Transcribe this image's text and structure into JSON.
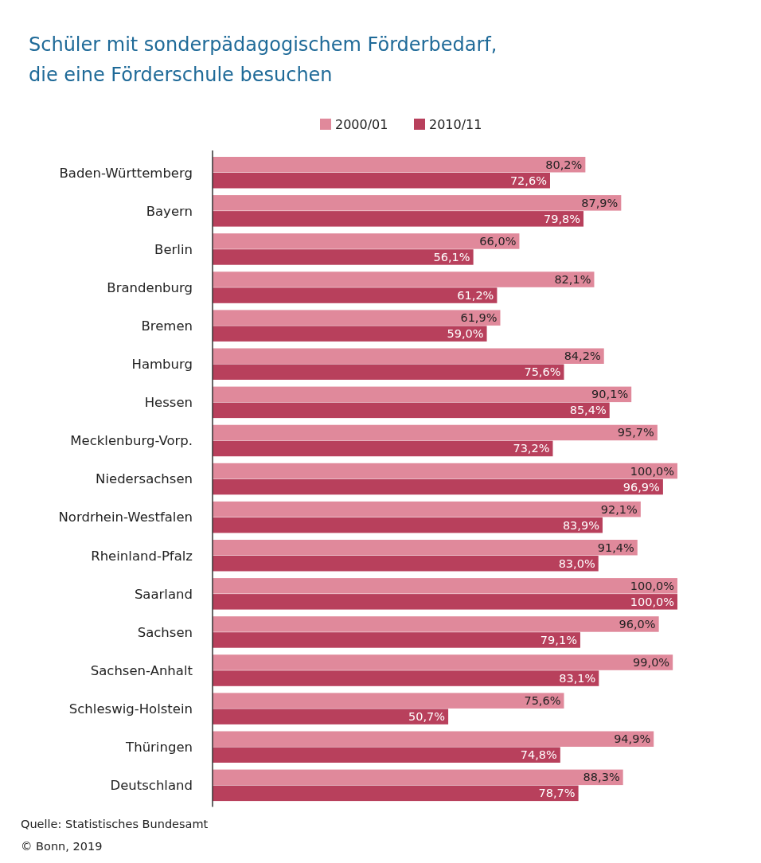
{
  "chart_data": {
    "type": "bar",
    "orientation": "horizontal",
    "title": "Schüler mit sonderpädagogischem Förderbedarf,\ndie eine Förderschule besuchen",
    "categories": [
      "Baden-Württemberg",
      "Bayern",
      "Berlin",
      "Brandenburg",
      "Bremen",
      "Hamburg",
      "Hessen",
      "Mecklenburg-Vorp.",
      "Niedersachsen",
      "Nordrhein-Westfalen",
      "Rheinland-Pfalz",
      "Saarland",
      "Sachsen",
      "Sachsen-Anhalt",
      "Schleswig-Holstein",
      "Thüringen",
      "Deutschland"
    ],
    "series": [
      {
        "name": "2000/01",
        "color": "#e0899b",
        "values": [
          80.2,
          87.9,
          66.0,
          82.1,
          61.9,
          84.2,
          90.1,
          95.7,
          100.0,
          92.1,
          91.4,
          100.0,
          96.0,
          99.0,
          75.6,
          94.9,
          88.3
        ],
        "value_labels": [
          "80,2%",
          "87,9%",
          "66,0%",
          "82,1%",
          "61,9%",
          "84,2%",
          "90,1%",
          "95,7%",
          "100,0%",
          "92,1%",
          "91,4%",
          "100,0%",
          "96,0%",
          "99,0%",
          "75,6%",
          "94,9%",
          "88,3%"
        ]
      },
      {
        "name": "2010/11",
        "color": "#b8405c",
        "values": [
          72.6,
          79.8,
          56.1,
          61.2,
          59.0,
          75.6,
          85.4,
          73.2,
          96.9,
          83.9,
          83.0,
          100.0,
          79.1,
          83.1,
          50.7,
          74.8,
          78.7
        ],
        "value_labels": [
          "72,6%",
          "79,8%",
          "56,1%",
          "61,2%",
          "59,0%",
          "75,6%",
          "85,4%",
          "73,2%",
          "96,9%",
          "83,9%",
          "83,0%",
          "100,0%",
          "79,1%",
          "83,1%",
          "50,7%",
          "74,8%",
          "78,7%"
        ]
      }
    ],
    "xlim": [
      0,
      100
    ],
    "legend": "top",
    "annotations": [
      "Quelle: Statistisches Bundesamt",
      "© Bonn, 2019"
    ]
  }
}
